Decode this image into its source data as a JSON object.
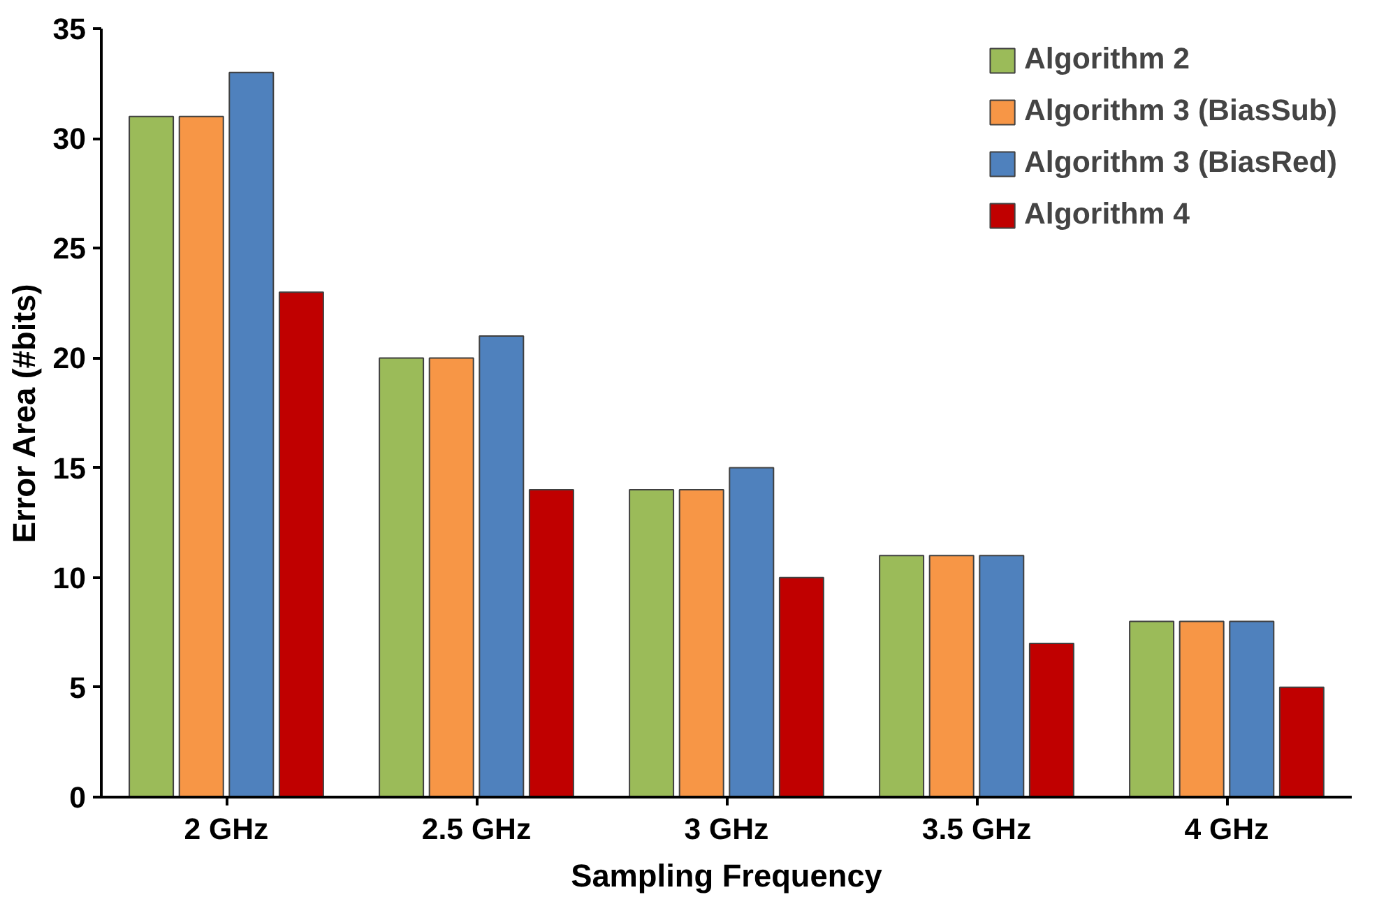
{
  "chart_data": {
    "type": "bar",
    "xlabel": "Sampling Frequency",
    "ylabel": "Error Area (#bits)",
    "categories": [
      "2 GHz",
      "2.5 GHz",
      "3 GHz",
      "3.5 GHz",
      "4 GHz"
    ],
    "series": [
      {
        "name": "Algorithm 2",
        "color": "#9bbb59",
        "values": [
          31,
          20,
          14,
          11,
          8
        ]
      },
      {
        "name": "Algorithm 3 (BiasSub)",
        "color": "#f79646",
        "values": [
          31,
          20,
          14,
          11,
          8
        ]
      },
      {
        "name": "Algorithm 3 (BiasRed)",
        "color": "#4f81bd",
        "values": [
          33,
          21,
          15,
          11,
          8
        ]
      },
      {
        "name": "Algorithm 4",
        "color": "#c00000",
        "values": [
          23,
          14,
          10,
          7,
          5
        ]
      }
    ],
    "ylim": [
      0,
      35
    ],
    "yticks": [
      0,
      5,
      10,
      15,
      20,
      25,
      30,
      35
    ],
    "grid": false,
    "legend": "top right"
  }
}
